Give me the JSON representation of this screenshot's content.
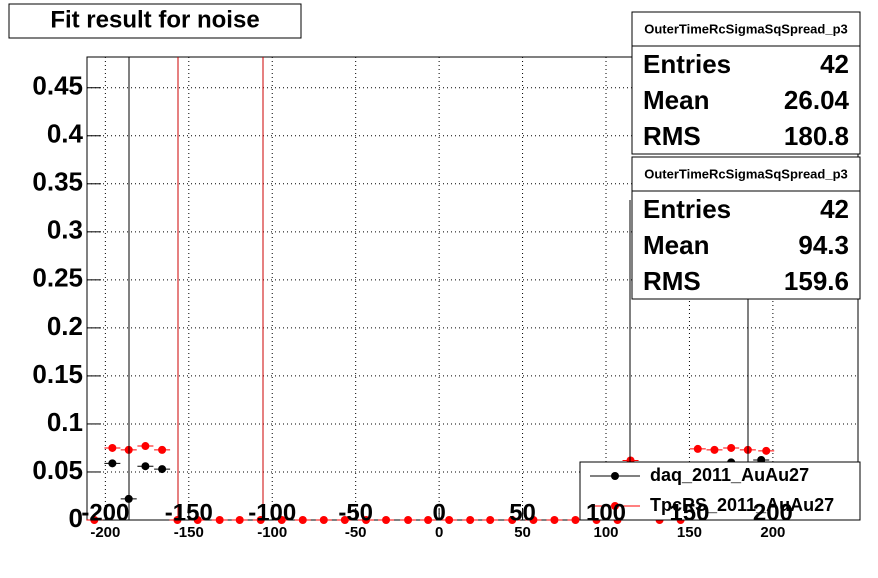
{
  "chart_data": {
    "type": "scatter",
    "title": "Fit result for noise",
    "xlim": [
      -211,
      251
    ],
    "ylim": [
      0,
      0.482
    ],
    "xticks": [
      -200,
      -150,
      -100,
      -50,
      0,
      50,
      100,
      150,
      200
    ],
    "yticks": [
      0,
      0.05,
      0.1,
      0.15,
      0.2,
      0.25,
      0.3,
      0.35,
      0.4,
      0.45
    ],
    "grid": true,
    "series": [
      {
        "name": "daq_2011_AuAu27",
        "color": "#000000",
        "x": [
          -195.8,
          -186,
          -176,
          -166,
          175,
          193
        ],
        "values": [
          0.059,
          0.022,
          0.056,
          0.053,
          0.06,
          0.0625
        ]
      },
      {
        "name": "TpcRS_2011_AuAu27",
        "color": "#ff0000",
        "x": [
          -206.6,
          -195.8,
          -186,
          -176,
          -166,
          -156.8,
          -144.7,
          -131.5,
          -119.5,
          -106.9,
          -94.3,
          -81.7,
          -69.1,
          -56.5,
          -43.8,
          -31.8,
          -18.6,
          -6.6,
          6,
          18.6,
          30.6,
          43.8,
          56.5,
          69.1,
          81.7,
          94.3,
          106.9,
          114.7,
          132.1,
          144.7,
          155,
          165,
          175,
          185,
          196
        ],
        "values": [
          0,
          0.075,
          0.073,
          0.077,
          0.073,
          0,
          0,
          0,
          0,
          0,
          0,
          0,
          0,
          0,
          0,
          0,
          0,
          0,
          0,
          0,
          0,
          0,
          0,
          0,
          0,
          0,
          0,
          0.062,
          0,
          0,
          0.074,
          0.073,
          0.075,
          0.073,
          0.072
        ]
      }
    ],
    "stats": [
      {
        "title": "OuterTimeRcSigmaSqSpread_p3",
        "entries_label": "Entries",
        "entries": 42,
        "mean_label": "Mean",
        "mean": 26.04,
        "rms_label": "RMS",
        "rms": 180.8
      },
      {
        "title": "OuterTimeRcSigmaSqSpread_p3",
        "entries_label": "Entries",
        "entries": 42,
        "mean_label": "Mean",
        "mean": 94.3,
        "rms_label": "RMS",
        "rms": 159.6
      }
    ]
  }
}
